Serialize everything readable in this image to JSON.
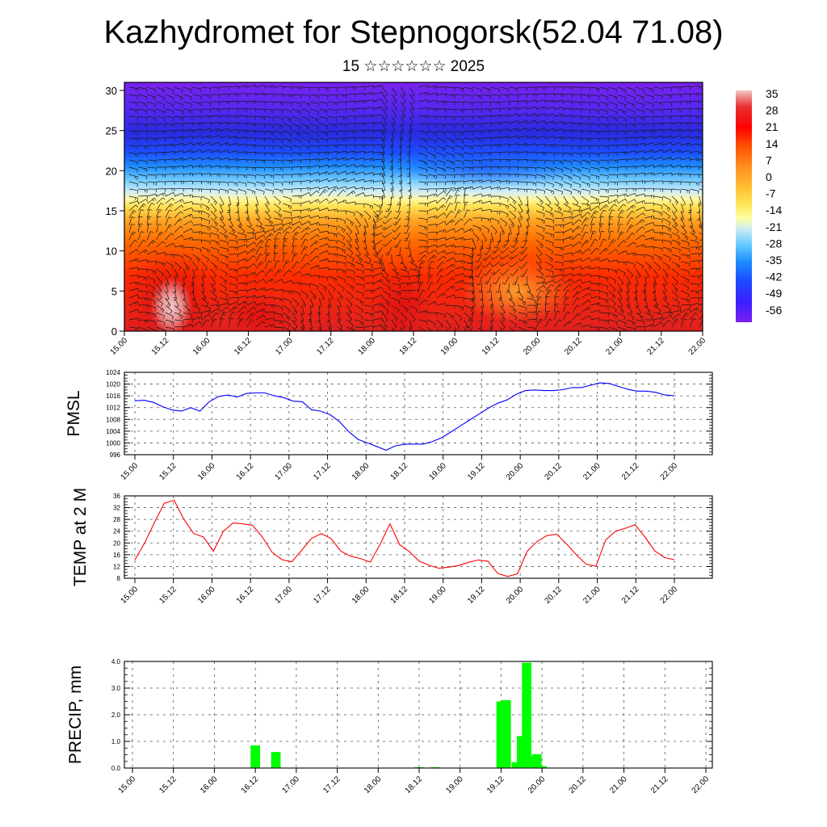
{
  "header": {
    "title": "Kazhydromet for Stepnogorsk(52.04 71.08)",
    "subtitle": "15 ☆☆☆☆☆☆ 2025"
  },
  "x_ticks": [
    "15.00",
    "15.12",
    "16.00",
    "16.12",
    "17.00",
    "17.12",
    "18.00",
    "18.12",
    "19.00",
    "19.12",
    "20.00",
    "20.12",
    "21.00",
    "21.12",
    "22.00"
  ],
  "chart_data": [
    {
      "id": "cross-section",
      "type": "heatmap",
      "description_fields": "time-height temperature section with wind barbs",
      "y_ticks": [
        0,
        5,
        10,
        15,
        20,
        25,
        30
      ],
      "ylim": [
        0,
        31
      ],
      "colorbar_labels": [
        "35",
        "28",
        "21",
        "14",
        "7",
        "0",
        "-7",
        "-14",
        "-21",
        "-28",
        "-35",
        "-42",
        "-49",
        "-56"
      ],
      "colors": [
        "#f4c4c4",
        "#e83030",
        "#ff0000",
        "#ff5000",
        "#ff8c1a",
        "#ffbe30",
        "#ffe860",
        "#ffff99",
        "#bfe6f0",
        "#5ec8ff",
        "#1e8cff",
        "#1c4cff",
        "#3a20ff",
        "#7a20f0"
      ]
    },
    {
      "id": "pmsl",
      "type": "line",
      "ylabel": "PMSL",
      "ylim": [
        996,
        1024
      ],
      "y_ticks": [
        996,
        1000,
        1004,
        1008,
        1012,
        1016,
        1020,
        1024
      ],
      "color": "#0000ff",
      "values": [
        1014.3,
        1014.5,
        1013.8,
        1012.3,
        1011.2,
        1010.8,
        1012.0,
        1010.8,
        1014.0,
        1015.8,
        1016.3,
        1015.6,
        1016.8,
        1017.0,
        1017.0,
        1016.0,
        1015.4,
        1014.2,
        1014.0,
        1011.3,
        1010.8,
        1009.6,
        1007.2,
        1003.8,
        1001.2,
        1000.0,
        998.8,
        997.5,
        999.0,
        999.6,
        999.6,
        999.6,
        1000.5,
        1001.8,
        1003.8,
        1005.8,
        1007.8,
        1009.8,
        1011.8,
        1013.5,
        1014.6,
        1016.5,
        1017.8,
        1018.0,
        1017.8,
        1017.8,
        1018.1,
        1018.8,
        1018.8,
        1019.6,
        1020.4,
        1020.2,
        1019.2,
        1018.2,
        1017.6,
        1017.6,
        1017.2,
        1016.3,
        1016.0
      ]
    },
    {
      "id": "temp2m",
      "type": "line",
      "ylabel": "TEMP at 2 M",
      "ylim": [
        8,
        36
      ],
      "y_ticks": [
        8,
        12,
        16,
        20,
        24,
        28,
        32,
        36
      ],
      "color": "#ff0000",
      "values": [
        14.2,
        20.0,
        27.0,
        33.5,
        34.5,
        28.0,
        23.2,
        22.0,
        17.2,
        23.8,
        26.8,
        26.5,
        26.0,
        22.0,
        16.8,
        14.3,
        13.6,
        17.5,
        21.5,
        23.2,
        21.5,
        17.2,
        15.5,
        14.7,
        13.5,
        19.5,
        26.5,
        19.4,
        17.0,
        13.8,
        12.4,
        11.4,
        11.8,
        12.3,
        13.4,
        14.2,
        13.8,
        9.6,
        8.6,
        9.5,
        17.2,
        20.5,
        22.5,
        23.0,
        19.7,
        16.0,
        12.8,
        12.1,
        21.0,
        24.0,
        25.0,
        26.2,
        22.0,
        17.3,
        15.0,
        14.3
      ]
    },
    {
      "id": "precip",
      "type": "bar",
      "ylabel": "PRECIP, mm",
      "ylim": [
        0,
        4
      ],
      "y_ticks": [
        "0.0",
        "1.0",
        "2.0",
        "3.0",
        "4.0"
      ],
      "color": "#00ff00",
      "bars": [
        {
          "x": 3.0,
          "value": 0.85
        },
        {
          "x": 3.5,
          "value": 0.6
        },
        {
          "x": 7.0,
          "value": 0.03
        },
        {
          "x": 7.4,
          "value": 0.03
        },
        {
          "x": 9.0,
          "value": 2.5
        },
        {
          "x": 9.125,
          "value": 2.55
        },
        {
          "x": 9.375,
          "value": 0.22
        },
        {
          "x": 9.5,
          "value": 1.2
        },
        {
          "x": 9.625,
          "value": 3.95
        },
        {
          "x": 9.75,
          "value": 0.45
        },
        {
          "x": 9.875,
          "value": 0.52
        },
        {
          "x": 10.0,
          "value": 0.07
        }
      ]
    }
  ]
}
